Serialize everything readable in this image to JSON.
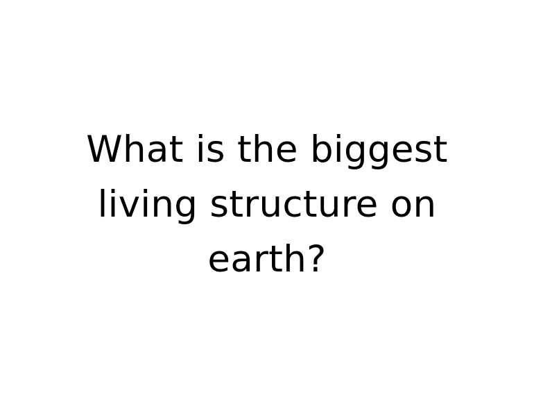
{
  "slide": {
    "background_color": "#ffffff",
    "text_color": "#000000",
    "question": {
      "lines": [
        "What is the biggest",
        "living structure on",
        "earth?"
      ]
    }
  }
}
